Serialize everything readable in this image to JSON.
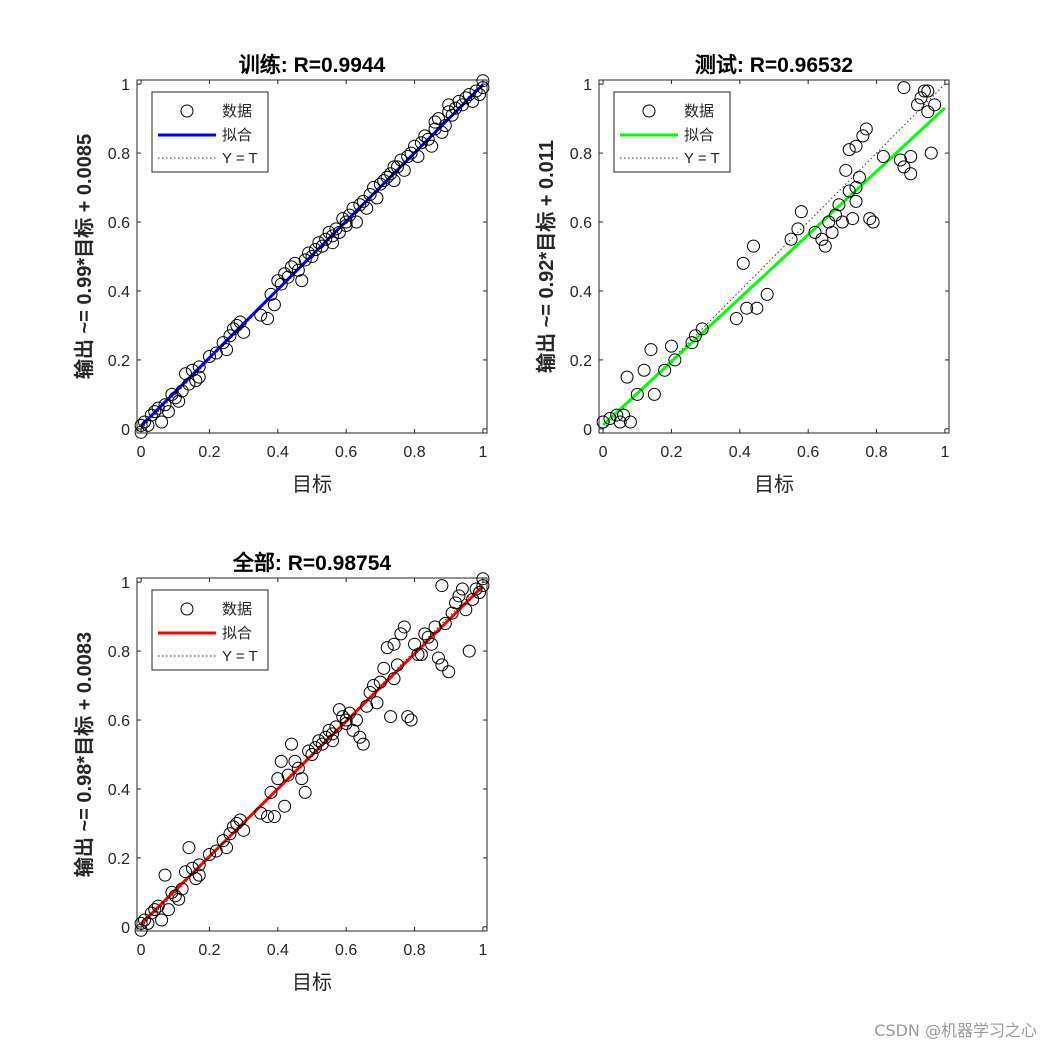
{
  "watermark": "CSDN @机器学习之心",
  "chart_data": [
    {
      "type": "scatter",
      "title": "训练: R=0.9944",
      "xlabel": "目标",
      "ylabel": "输出 ~= 0.99*目标 + 0.0085",
      "xlim": [
        0,
        1
      ],
      "ylim": [
        0,
        1
      ],
      "xticks": [
        "0",
        "0.2",
        "0.4",
        "0.6",
        "0.8",
        "1"
      ],
      "yticks": [
        "0",
        "0.2",
        "0.4",
        "0.6",
        "0.8",
        "1"
      ],
      "legend": {
        "placement": "top-left",
        "entries": [
          "数据",
          "拟合",
          "Y = T"
        ]
      },
      "fit": {
        "slope": 0.99,
        "intercept": 0.0085,
        "color": "#0000ff"
      },
      "points": [
        [
          0,
          -0.01
        ],
        [
          0,
          0.01
        ],
        [
          0.01,
          0.02
        ],
        [
          0.02,
          0.01
        ],
        [
          0.03,
          0.04
        ],
        [
          0.04,
          0.05
        ],
        [
          0.05,
          0.06
        ],
        [
          0.06,
          0.02
        ],
        [
          0.07,
          0.07
        ],
        [
          0.08,
          0.05
        ],
        [
          0.09,
          0.1
        ],
        [
          0.1,
          0.09
        ],
        [
          0.11,
          0.08
        ],
        [
          0.12,
          0.11
        ],
        [
          0.13,
          0.16
        ],
        [
          0.14,
          0.13
        ],
        [
          0.15,
          0.17
        ],
        [
          0.16,
          0.14
        ],
        [
          0.17,
          0.18
        ],
        [
          0.2,
          0.21
        ],
        [
          0.22,
          0.22
        ],
        [
          0.24,
          0.25
        ],
        [
          0.25,
          0.23
        ],
        [
          0.26,
          0.27
        ],
        [
          0.27,
          0.29
        ],
        [
          0.28,
          0.3
        ],
        [
          0.29,
          0.31
        ],
        [
          0.3,
          0.28
        ],
        [
          0.37,
          0.32
        ],
        [
          0.38,
          0.39
        ],
        [
          0.39,
          0.36
        ],
        [
          0.4,
          0.43
        ],
        [
          0.41,
          0.42
        ],
        [
          0.42,
          0.45
        ],
        [
          0.43,
          0.44
        ],
        [
          0.44,
          0.47
        ],
        [
          0.45,
          0.48
        ],
        [
          0.46,
          0.46
        ],
        [
          0.47,
          0.43
        ],
        [
          0.48,
          0.49
        ],
        [
          0.49,
          0.51
        ],
        [
          0.5,
          0.5
        ],
        [
          0.51,
          0.52
        ],
        [
          0.52,
          0.54
        ],
        [
          0.53,
          0.53
        ],
        [
          0.54,
          0.55
        ],
        [
          0.55,
          0.57
        ],
        [
          0.56,
          0.56
        ],
        [
          0.57,
          0.58
        ],
        [
          0.58,
          0.57
        ],
        [
          0.59,
          0.61
        ],
        [
          0.6,
          0.59
        ],
        [
          0.61,
          0.62
        ],
        [
          0.62,
          0.64
        ],
        [
          0.63,
          0.6
        ],
        [
          0.64,
          0.65
        ],
        [
          0.65,
          0.66
        ],
        [
          0.66,
          0.64
        ],
        [
          0.67,
          0.68
        ],
        [
          0.68,
          0.7
        ],
        [
          0.69,
          0.67
        ],
        [
          0.7,
          0.71
        ],
        [
          0.71,
          0.72
        ],
        [
          0.72,
          0.73
        ],
        [
          0.73,
          0.74
        ],
        [
          0.74,
          0.72
        ],
        [
          0.75,
          0.76
        ],
        [
          0.76,
          0.78
        ],
        [
          0.77,
          0.75
        ],
        [
          0.78,
          0.79
        ],
        [
          0.79,
          0.8
        ],
        [
          0.8,
          0.82
        ],
        [
          0.81,
          0.79
        ],
        [
          0.82,
          0.83
        ],
        [
          0.83,
          0.85
        ],
        [
          0.84,
          0.84
        ],
        [
          0.85,
          0.82
        ],
        [
          0.86,
          0.87
        ],
        [
          0.87,
          0.9
        ],
        [
          0.88,
          0.86
        ],
        [
          0.89,
          0.88
        ],
        [
          0.9,
          0.92
        ],
        [
          0.91,
          0.91
        ],
        [
          0.92,
          0.93
        ],
        [
          0.93,
          0.95
        ],
        [
          0.94,
          0.94
        ],
        [
          0.95,
          0.96
        ],
        [
          0.96,
          0.97
        ],
        [
          0.97,
          0.95
        ],
        [
          0.98,
          0.98
        ],
        [
          0.99,
          0.97
        ],
        [
          1,
          1.01
        ],
        [
          1,
          0.99
        ],
        [
          0.9,
          0.94
        ],
        [
          0.86,
          0.89
        ],
        [
          0.74,
          0.76
        ],
        [
          0.6,
          0.6
        ],
        [
          0.56,
          0.54
        ],
        [
          0.35,
          0.33
        ],
        [
          0.17,
          0.15
        ]
      ]
    },
    {
      "type": "scatter",
      "title": "测试: R=0.96532",
      "xlabel": "目标",
      "ylabel": "输出 ~= 0.92*目标 + 0.011",
      "xlim": [
        0,
        1
      ],
      "ylim": [
        0,
        1
      ],
      "xticks": [
        "0",
        "0.2",
        "0.4",
        "0.6",
        "0.8",
        "1"
      ],
      "yticks": [
        "0",
        "0.2",
        "0.4",
        "0.6",
        "0.8",
        "1"
      ],
      "legend": {
        "placement": "top-left",
        "entries": [
          "数据",
          "拟合",
          "Y = T"
        ]
      },
      "fit": {
        "slope": 0.92,
        "intercept": 0.011,
        "color": "#00ff00"
      },
      "points": [
        [
          0,
          0.02
        ],
        [
          0.02,
          0.03
        ],
        [
          0.04,
          0.04
        ],
        [
          0.05,
          0.02
        ],
        [
          0.06,
          0.04
        ],
        [
          0.07,
          0.15
        ],
        [
          0.08,
          0.02
        ],
        [
          0.1,
          0.1
        ],
        [
          0.12,
          0.17
        ],
        [
          0.14,
          0.23
        ],
        [
          0.15,
          0.1
        ],
        [
          0.18,
          0.17
        ],
        [
          0.2,
          0.24
        ],
        [
          0.21,
          0.2
        ],
        [
          0.26,
          0.25
        ],
        [
          0.27,
          0.27
        ],
        [
          0.29,
          0.29
        ],
        [
          0.39,
          0.32
        ],
        [
          0.41,
          0.48
        ],
        [
          0.42,
          0.35
        ],
        [
          0.44,
          0.53
        ],
        [
          0.45,
          0.35
        ],
        [
          0.48,
          0.39
        ],
        [
          0.55,
          0.55
        ],
        [
          0.57,
          0.58
        ],
        [
          0.58,
          0.63
        ],
        [
          0.62,
          0.57
        ],
        [
          0.64,
          0.55
        ],
        [
          0.65,
          0.53
        ],
        [
          0.66,
          0.6
        ],
        [
          0.67,
          0.57
        ],
        [
          0.68,
          0.62
        ],
        [
          0.69,
          0.65
        ],
        [
          0.7,
          0.6
        ],
        [
          0.71,
          0.75
        ],
        [
          0.72,
          0.81
        ],
        [
          0.73,
          0.61
        ],
        [
          0.74,
          0.7
        ],
        [
          0.75,
          0.73
        ],
        [
          0.76,
          0.85
        ],
        [
          0.77,
          0.87
        ],
        [
          0.78,
          0.61
        ],
        [
          0.79,
          0.6
        ],
        [
          0.74,
          0.66
        ],
        [
          0.82,
          0.79
        ],
        [
          0.87,
          0.78
        ],
        [
          0.88,
          0.76
        ],
        [
          0.9,
          0.74
        ],
        [
          0.9,
          0.79
        ],
        [
          0.92,
          0.94
        ],
        [
          0.93,
          0.96
        ],
        [
          0.94,
          0.98
        ],
        [
          0.95,
          0.98
        ],
        [
          0.95,
          0.92
        ],
        [
          0.96,
          0.8
        ],
        [
          0.97,
          0.94
        ],
        [
          0.88,
          0.99
        ],
        [
          0.74,
          0.82
        ],
        [
          0.72,
          0.69
        ]
      ]
    },
    {
      "type": "scatter",
      "title": "全部: R=0.98754",
      "xlabel": "目标",
      "ylabel": "输出 ~= 0.98*目标 + 0.0083",
      "xlim": [
        0,
        1
      ],
      "ylim": [
        0,
        1
      ],
      "xticks": [
        "0",
        "0.2",
        "0.4",
        "0.6",
        "0.8",
        "1"
      ],
      "yticks": [
        "0",
        "0.2",
        "0.4",
        "0.6",
        "0.8",
        "1"
      ],
      "legend": {
        "placement": "top-left",
        "entries": [
          "数据",
          "拟合",
          "Y = T"
        ]
      },
      "fit": {
        "slope": 0.98,
        "intercept": 0.0083,
        "color": "#ff0000"
      },
      "points": [
        [
          0,
          -0.01
        ],
        [
          0,
          0.01
        ],
        [
          0.01,
          0.02
        ],
        [
          0.02,
          0.01
        ],
        [
          0.03,
          0.04
        ],
        [
          0.04,
          0.05
        ],
        [
          0.05,
          0.06
        ],
        [
          0.06,
          0.02
        ],
        [
          0.07,
          0.15
        ],
        [
          0.08,
          0.05
        ],
        [
          0.09,
          0.1
        ],
        [
          0.1,
          0.09
        ],
        [
          0.11,
          0.08
        ],
        [
          0.12,
          0.11
        ],
        [
          0.13,
          0.16
        ],
        [
          0.14,
          0.23
        ],
        [
          0.15,
          0.17
        ],
        [
          0.16,
          0.14
        ],
        [
          0.17,
          0.18
        ],
        [
          0.2,
          0.21
        ],
        [
          0.22,
          0.22
        ],
        [
          0.24,
          0.25
        ],
        [
          0.25,
          0.23
        ],
        [
          0.26,
          0.27
        ],
        [
          0.27,
          0.29
        ],
        [
          0.28,
          0.3
        ],
        [
          0.29,
          0.31
        ],
        [
          0.3,
          0.28
        ],
        [
          0.37,
          0.32
        ],
        [
          0.38,
          0.39
        ],
        [
          0.39,
          0.32
        ],
        [
          0.4,
          0.43
        ],
        [
          0.41,
          0.48
        ],
        [
          0.42,
          0.35
        ],
        [
          0.43,
          0.44
        ],
        [
          0.44,
          0.53
        ],
        [
          0.45,
          0.48
        ],
        [
          0.46,
          0.46
        ],
        [
          0.47,
          0.43
        ],
        [
          0.48,
          0.39
        ],
        [
          0.49,
          0.51
        ],
        [
          0.5,
          0.5
        ],
        [
          0.51,
          0.52
        ],
        [
          0.52,
          0.54
        ],
        [
          0.53,
          0.53
        ],
        [
          0.54,
          0.55
        ],
        [
          0.55,
          0.57
        ],
        [
          0.56,
          0.56
        ],
        [
          0.57,
          0.58
        ],
        [
          0.58,
          0.63
        ],
        [
          0.59,
          0.61
        ],
        [
          0.6,
          0.59
        ],
        [
          0.61,
          0.62
        ],
        [
          0.62,
          0.57
        ],
        [
          0.63,
          0.6
        ],
        [
          0.64,
          0.55
        ],
        [
          0.65,
          0.53
        ],
        [
          0.66,
          0.64
        ],
        [
          0.67,
          0.68
        ],
        [
          0.68,
          0.7
        ],
        [
          0.69,
          0.65
        ],
        [
          0.7,
          0.71
        ],
        [
          0.71,
          0.75
        ],
        [
          0.72,
          0.81
        ],
        [
          0.73,
          0.61
        ],
        [
          0.74,
          0.72
        ],
        [
          0.75,
          0.76
        ],
        [
          0.76,
          0.85
        ],
        [
          0.77,
          0.87
        ],
        [
          0.78,
          0.61
        ],
        [
          0.79,
          0.6
        ],
        [
          0.8,
          0.82
        ],
        [
          0.81,
          0.79
        ],
        [
          0.82,
          0.79
        ],
        [
          0.83,
          0.85
        ],
        [
          0.84,
          0.84
        ],
        [
          0.85,
          0.82
        ],
        [
          0.86,
          0.87
        ],
        [
          0.87,
          0.78
        ],
        [
          0.88,
          0.76
        ],
        [
          0.89,
          0.88
        ],
        [
          0.9,
          0.74
        ],
        [
          0.91,
          0.91
        ],
        [
          0.92,
          0.94
        ],
        [
          0.93,
          0.96
        ],
        [
          0.94,
          0.98
        ],
        [
          0.95,
          0.92
        ],
        [
          0.96,
          0.8
        ],
        [
          0.97,
          0.95
        ],
        [
          0.98,
          0.98
        ],
        [
          0.99,
          0.97
        ],
        [
          1,
          1.01
        ],
        [
          1,
          0.99
        ],
        [
          0.88,
          0.99
        ],
        [
          0.74,
          0.82
        ],
        [
          0.6,
          0.6
        ],
        [
          0.56,
          0.54
        ],
        [
          0.35,
          0.33
        ],
        [
          0.17,
          0.15
        ]
      ]
    }
  ]
}
